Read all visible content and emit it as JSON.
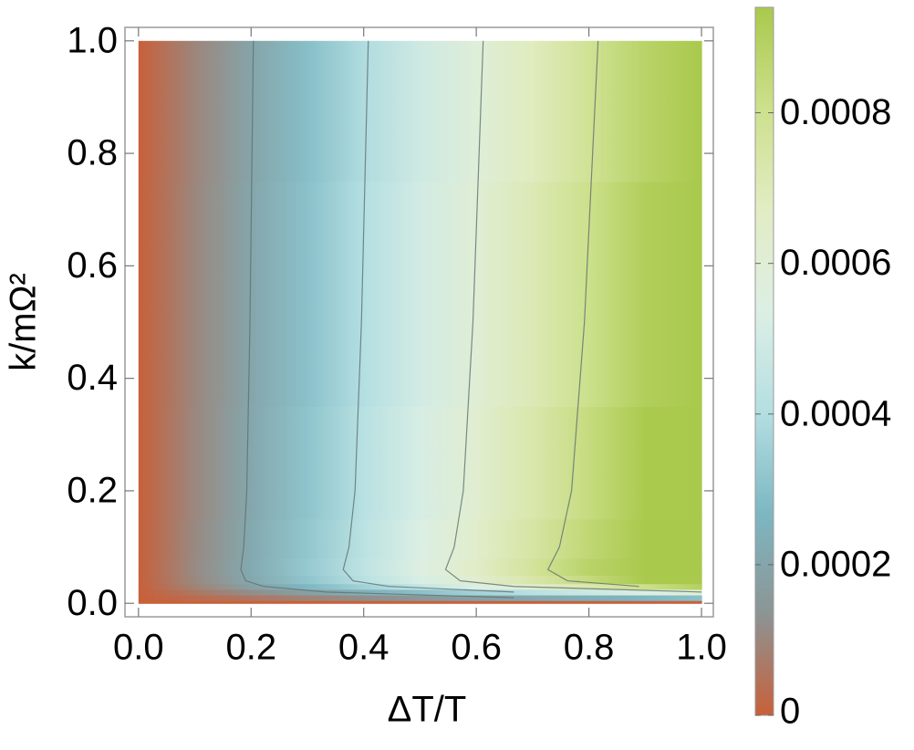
{
  "chart_data": {
    "type": "heatmap",
    "x_label": "ΔT/T",
    "y_label": "k/mΩ²",
    "x": [
      0,
      0.1,
      0.2,
      0.3,
      0.4,
      0.5,
      0.6,
      0.7,
      0.8,
      0.9,
      1
    ],
    "y": [
      0,
      0.01,
      0.02,
      0.03,
      0.04,
      0.06,
      0.1,
      0.2,
      0.5,
      1
    ],
    "z": [
      [
        0,
        0,
        0,
        0,
        0,
        0,
        0,
        0,
        0,
        0,
        0
      ],
      [
        0,
        3e-05,
        6e-05,
        9e-05,
        0.00012,
        0.00015,
        0.00018,
        0.00021,
        0.00024,
        0.00027,
        0.0003
      ],
      [
        0,
        6e-05,
        0.00012,
        0.00018,
        0.00024,
        0.0003,
        0.00036,
        0.00042,
        0.00048,
        0.00054,
        0.0006
      ],
      [
        0,
        9e-05,
        0.00018,
        0.00027,
        0.00036,
        0.00045,
        0.00054,
        0.00063,
        0.00072,
        0.00081,
        0.0009
      ],
      [
        0,
        0.000105,
        0.00021,
        0.000315,
        0.00042,
        0.000525,
        0.00063,
        0.000735,
        0.00084,
        0.000945,
        0.00105
      ],
      [
        0,
        0.00011,
        0.00022,
        0.00033,
        0.00044,
        0.00055,
        0.00066,
        0.00077,
        0.00088,
        0.00099,
        0.0011
      ],
      [
        0,
        0.000107,
        0.000214,
        0.000321,
        0.000428,
        0.000535,
        0.000642,
        0.000749,
        0.000856,
        0.000963,
        0.00107
      ],
      [
        0,
        0.000104,
        0.000208,
        0.000312,
        0.000416,
        0.00052,
        0.000624,
        0.000728,
        0.000832,
        0.000936,
        0.00104
      ],
      [
        0,
        0.000101,
        0.000202,
        0.000303,
        0.000404,
        0.000505,
        0.000606,
        0.000707,
        0.000808,
        0.000909,
        0.00101
      ],
      [
        0,
        9.8e-05,
        0.000196,
        0.000294,
        0.000392,
        0.00049,
        0.000588,
        0.000686,
        0.000784,
        0.000882,
        0.00098
      ]
    ],
    "xlim": [
      -0.024,
      1.021
    ],
    "ylim": [
      -0.024,
      1.024
    ],
    "xticks": [
      {
        "value": 0,
        "label": "0.0"
      },
      0.2,
      0.4,
      0.6,
      0.8,
      {
        "value": 1,
        "label": "1.0"
      }
    ],
    "yticks": [
      {
        "value": 0,
        "label": "0.0"
      },
      0.2,
      0.4,
      0.6,
      0.8,
      {
        "value": 1,
        "label": "1.0"
      }
    ],
    "colorbar_lim": [
      0,
      0.00094
    ],
    "colorbar_ticks": [
      0,
      0.0002,
      0.0004,
      0.0006,
      0.0008
    ],
    "colorscale": [
      "#c8603a",
      "#8c9494",
      "#7db7c2",
      "#b4dfe2",
      "#dcefe4",
      "#e2ecc4",
      "#cde08c",
      "#a9c94c"
    ],
    "contours": true
  }
}
